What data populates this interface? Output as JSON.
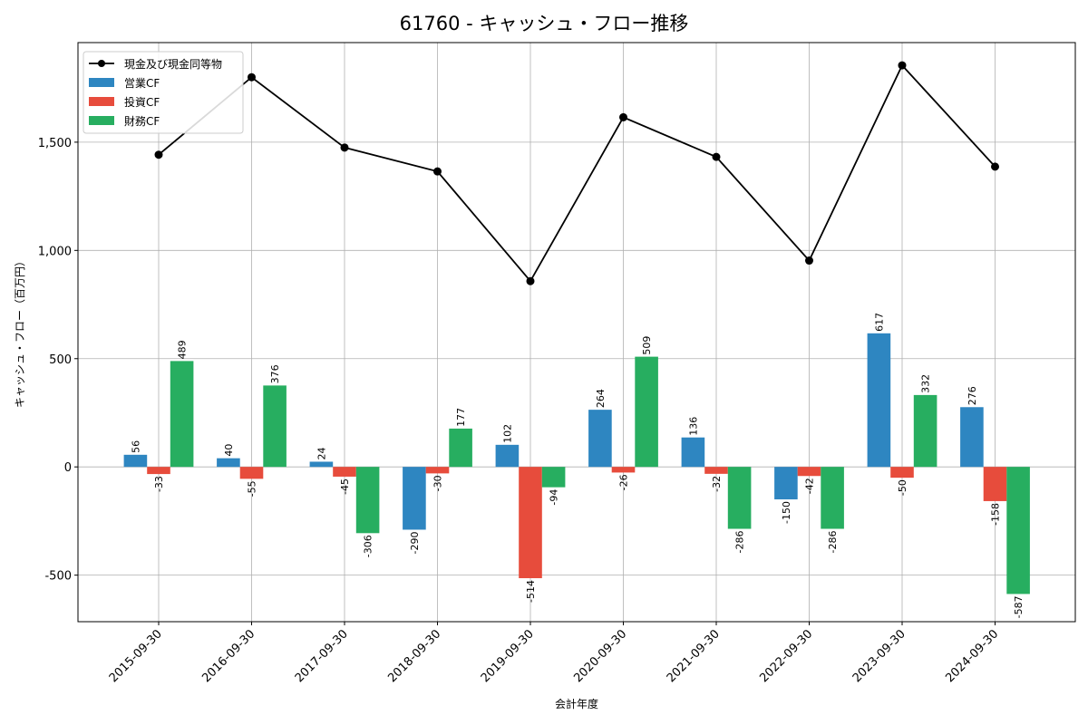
{
  "colors": {
    "operating": "#2e86c1",
    "investing": "#e74c3c",
    "financing": "#27ae60",
    "cash": "#000000",
    "grid": "#b0b0b0"
  },
  "chart_data": {
    "type": "bar",
    "title": "61760 - キャッシュ・フロー推移",
    "xlabel": "会計年度",
    "ylabel": "キャッシュ・フロー（百万円）",
    "categories": [
      "2015-09-30",
      "2016-09-30",
      "2017-09-30",
      "2018-09-30",
      "2019-09-30",
      "2020-09-30",
      "2021-09-30",
      "2022-09-30",
      "2023-09-30",
      "2024-09-30"
    ],
    "ylim": [
      -715,
      1960
    ],
    "yticks": [
      -500,
      0,
      500,
      1000,
      1500
    ],
    "ytick_labels": [
      "-500",
      "0",
      "500",
      "1,000",
      "1,500"
    ],
    "grid": true,
    "legend_position": "top-left",
    "series": [
      {
        "name": "営業CF",
        "type": "bar",
        "color_key": "operating",
        "values": [
          56,
          40,
          24,
          -290,
          102,
          264,
          136,
          -150,
          617,
          276
        ]
      },
      {
        "name": "投資CF",
        "type": "bar",
        "color_key": "investing",
        "values": [
          -33,
          -55,
          -45,
          -30,
          -514,
          -26,
          -32,
          -42,
          -50,
          -158
        ]
      },
      {
        "name": "財務CF",
        "type": "bar",
        "color_key": "financing",
        "values": [
          489,
          376,
          -306,
          177,
          -94,
          509,
          -286,
          -286,
          332,
          -587
        ]
      },
      {
        "name": "現金及び現金同等物",
        "type": "line",
        "color_key": "cash",
        "values": [
          1442,
          1800,
          1475,
          1365,
          858,
          1615,
          1432,
          953,
          1855,
          1387
        ]
      }
    ]
  }
}
